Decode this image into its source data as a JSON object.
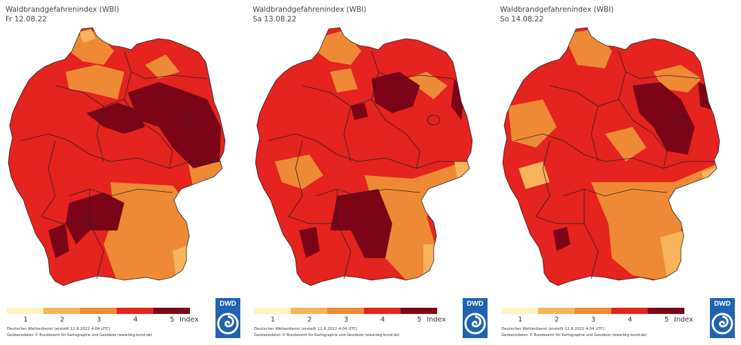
{
  "colors": {
    "class1": "#fff5c4",
    "class2": "#f8b45a",
    "class3": "#ee8a36",
    "class4": "#e5231f",
    "class5": "#7b0517",
    "border": "#222222",
    "logo_bg": "#1f63b2"
  },
  "panels": [
    {
      "title": "Waldbrandgefahrenindex (WBI)",
      "date": "Fr 12.08.22"
    },
    {
      "title": "Waldbrandgefahrenindex (WBI)",
      "date": "Sa 13.08.22"
    },
    {
      "title": "Waldbrandgefahrenindex (WBI)",
      "date": "So 14.08.22"
    }
  ],
  "legend": {
    "labels": [
      "1",
      "2",
      "3",
      "4",
      "5",
      "Index"
    ]
  },
  "footer": {
    "line1": "Deutscher Wetterdienst (erstellt 12.8.2022 4:04 UTC)",
    "line2": "Geobasisdaten © Bundesamt für Kartographie und Geodäsie (www.bkg.bund.de)"
  },
  "logo": {
    "text": "DWD",
    "icon": "dwd-swirl-icon"
  }
}
